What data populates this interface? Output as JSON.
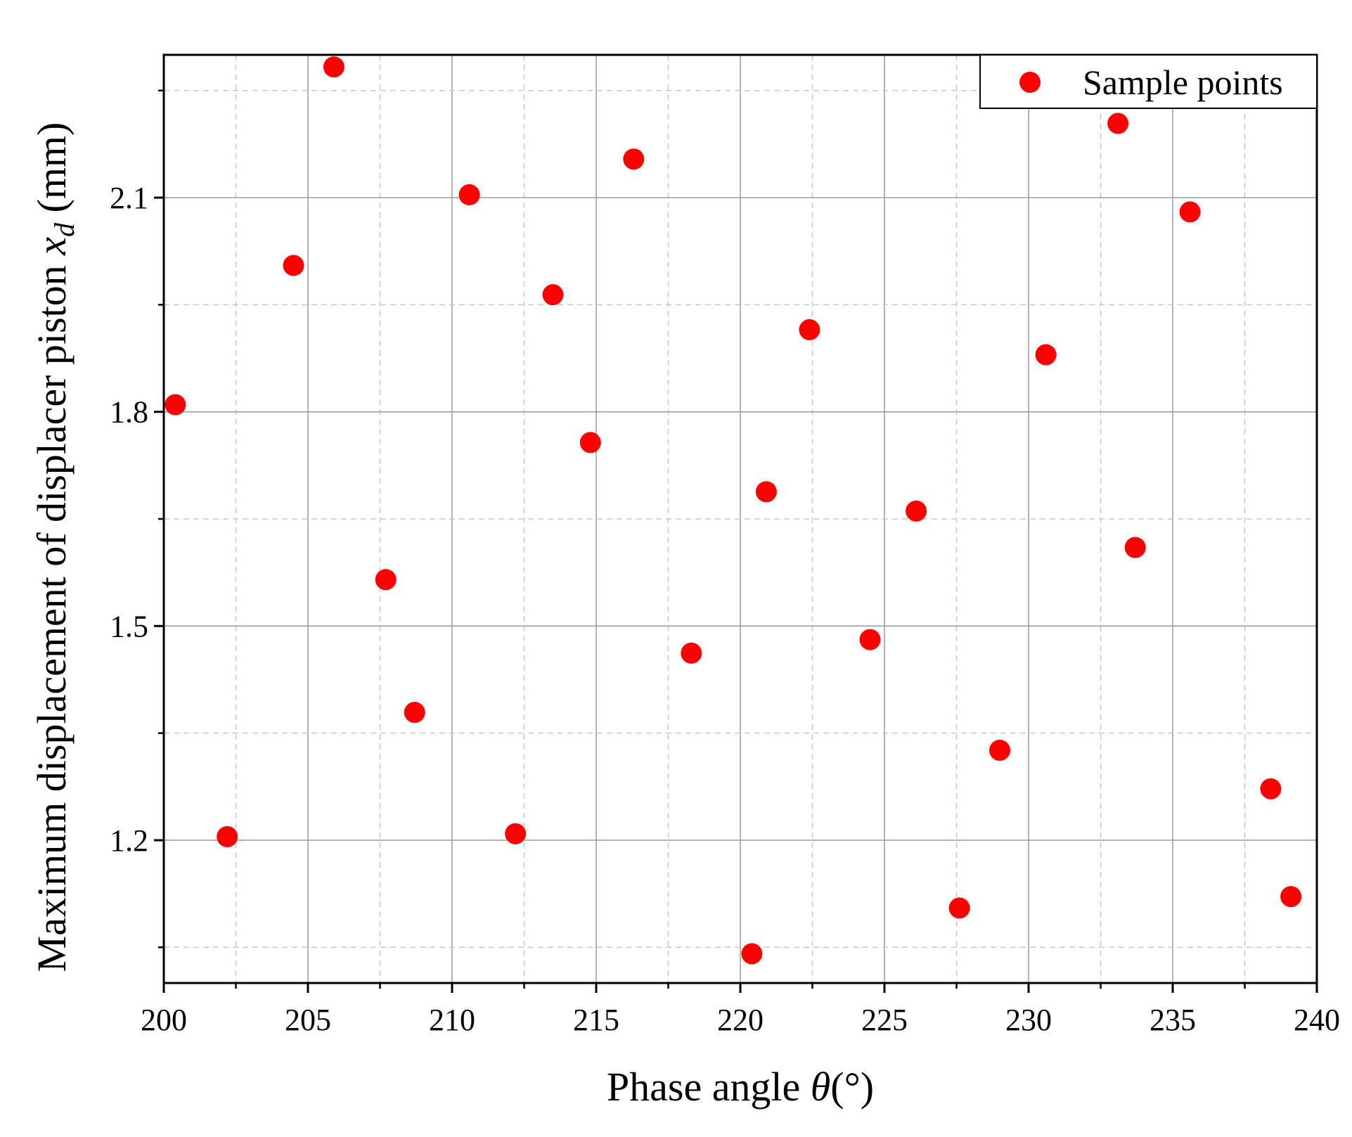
{
  "chart_data": {
    "type": "scatter",
    "title": "",
    "xlabel": {
      "text": "Phase angle ",
      "symbol": "θ",
      "unit": "(°)"
    },
    "ylabel": {
      "text": "Maximum displacement of displacer piston ",
      "symbol": "x",
      "subscript": "d",
      "unit": " (mm)"
    },
    "xlim": [
      200,
      240
    ],
    "ylim": [
      1.0,
      2.3
    ],
    "x_ticks": [
      "200",
      "205",
      "210",
      "215",
      "220",
      "225",
      "230",
      "235",
      "240"
    ],
    "y_ticks": [
      "1.2",
      "1.5",
      "1.8",
      "2.1"
    ],
    "grid": true,
    "legend_position": "top-right",
    "series": [
      {
        "name": "Sample points",
        "color": "#ff0000",
        "marker": "circle",
        "points": [
          [
            200.4,
            1.81
          ],
          [
            202.2,
            1.205
          ],
          [
            204.5,
            2.005
          ],
          [
            205.9,
            2.283
          ],
          [
            207.7,
            1.565
          ],
          [
            208.7,
            1.379
          ],
          [
            210.6,
            2.104
          ],
          [
            212.2,
            1.209
          ],
          [
            213.5,
            1.964
          ],
          [
            214.8,
            1.757
          ],
          [
            216.3,
            2.154
          ],
          [
            218.3,
            1.462
          ],
          [
            220.4,
            1.041
          ],
          [
            220.9,
            1.688
          ],
          [
            222.4,
            1.915
          ],
          [
            224.5,
            1.481
          ],
          [
            226.1,
            1.661
          ],
          [
            227.6,
            1.105
          ],
          [
            229.0,
            1.326
          ],
          [
            230.6,
            1.88
          ],
          [
            233.1,
            2.204
          ],
          [
            233.7,
            1.61
          ],
          [
            235.6,
            2.08
          ],
          [
            238.4,
            1.272
          ],
          [
            239.1,
            1.121
          ]
        ]
      }
    ]
  }
}
